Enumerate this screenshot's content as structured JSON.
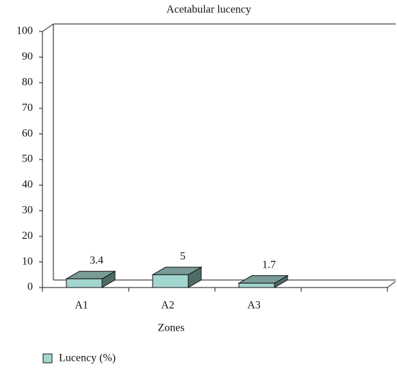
{
  "chart_data": {
    "type": "bar3d",
    "title": "Acetabular lucency",
    "x_label": "Zones",
    "categories": [
      "A1",
      "A2",
      "A3",
      null
    ],
    "series": [
      {
        "name": "Lucency (%)",
        "color": "#a3d6d0",
        "values": [
          3.4,
          5,
          1.7,
          null
        ]
      }
    ],
    "ylim": [
      0,
      100
    ],
    "yticks": [
      0,
      10,
      20,
      30,
      40,
      50,
      60,
      70,
      80,
      90,
      100
    ],
    "legend": "bottom-left"
  }
}
